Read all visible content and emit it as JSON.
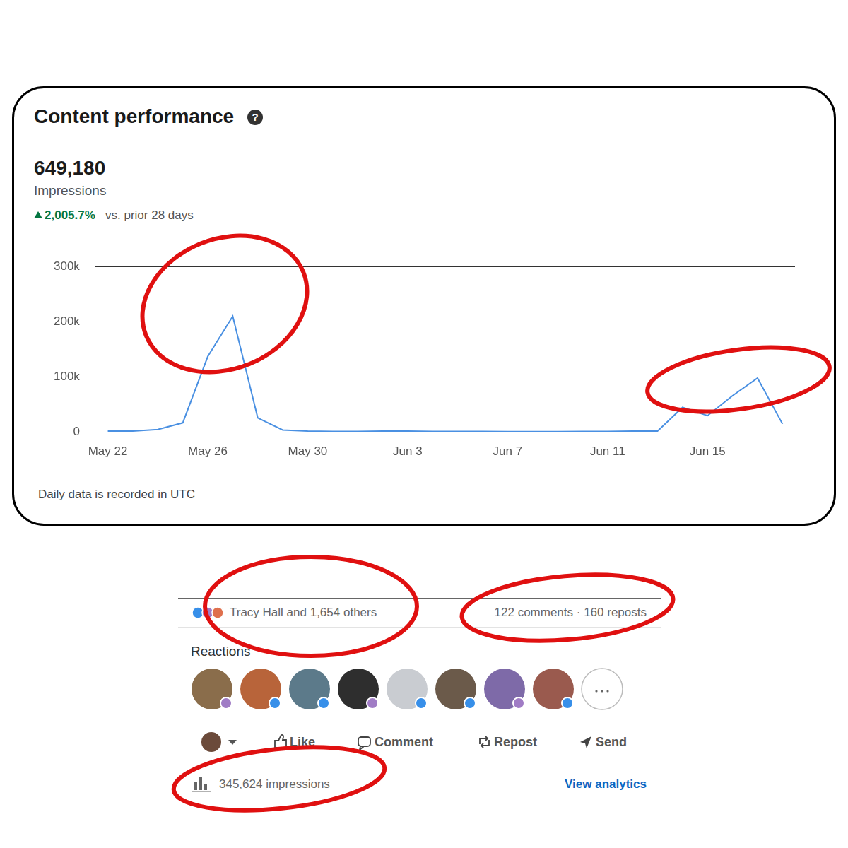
{
  "header": {
    "title": "Content performance",
    "help": "?",
    "total": "649,180",
    "metric": "Impressions",
    "change": "2,005.7%",
    "comparison": "vs. prior 28 days",
    "footnote": "Daily data is recorded in UTC"
  },
  "chart_data": {
    "type": "line",
    "categories": [
      "May 22",
      null,
      null,
      null,
      "May 26",
      null,
      null,
      null,
      "May 30",
      null,
      null,
      null,
      "Jun 3",
      null,
      null,
      null,
      "Jun 7",
      null,
      null,
      null,
      "Jun 11",
      null,
      null,
      null,
      "Jun 15",
      null,
      null,
      null
    ],
    "values": [
      2000,
      2000,
      5000,
      17000,
      137000,
      210000,
      26000,
      4000,
      2000,
      1500,
      1500,
      2000,
      2000,
      1500,
      1500,
      1500,
      1000,
      1000,
      1000,
      1500,
      1500,
      2000,
      2000,
      45000,
      30000,
      66000,
      98000,
      15000
    ],
    "color": "#4a90e2",
    "ylim": [
      0,
      300000
    ],
    "yticks": [
      0,
      {
        "value": 100000,
        "label": "100k"
      },
      {
        "value": 200000,
        "label": "200k"
      },
      {
        "value": 300000,
        "label": "300k"
      }
    ],
    "grid": true
  },
  "post": {
    "reactions_summary": "Tracy Hall and 1,654 others",
    "engagement": "122 comments · 160 reposts",
    "reactions_heading": "Reactions",
    "actions": [
      "Like",
      "Comment",
      "Repost",
      "Send"
    ],
    "impressions": "345,624 impressions",
    "analytics_link": "View analytics"
  }
}
